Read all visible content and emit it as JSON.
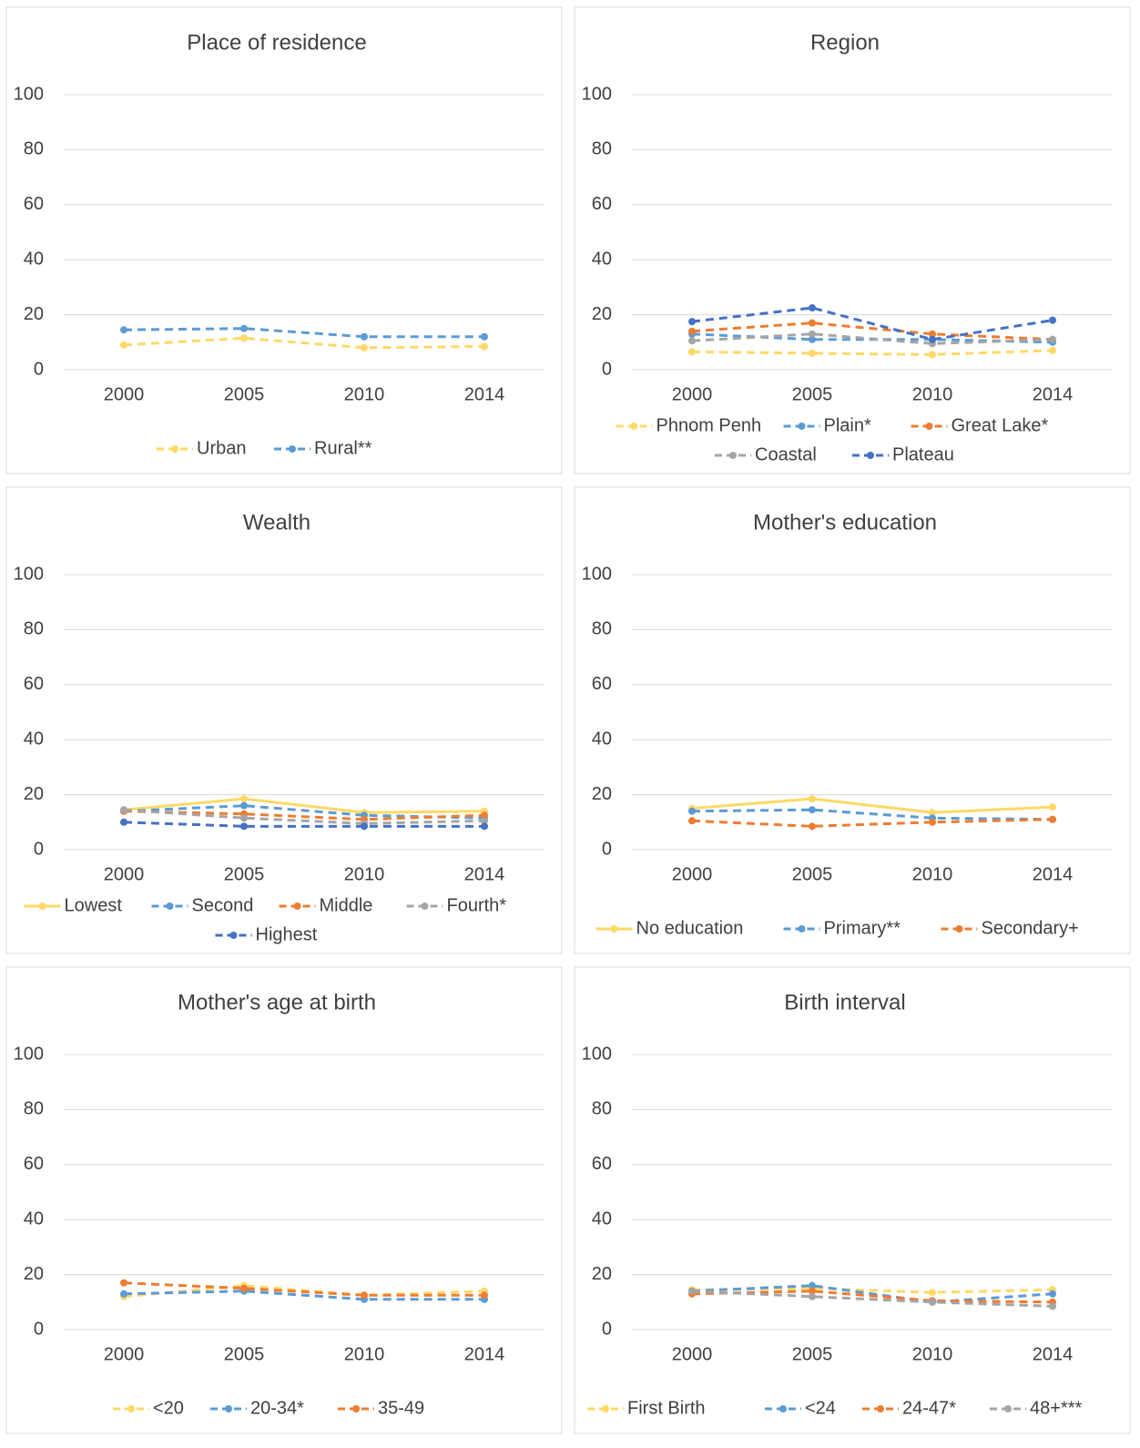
{
  "chart_data": [
    {
      "type": "line",
      "title": "Place of residence",
      "categories": [
        "2000",
        "2005",
        "2010",
        "2014"
      ],
      "ylim": [
        0,
        100
      ],
      "yticks": [
        0,
        20,
        40,
        60,
        80,
        100
      ],
      "grid": true,
      "series": [
        {
          "name": "Urban",
          "color": "#FFD966",
          "dashed": true,
          "values": [
            9,
            11.5,
            8,
            8.5
          ]
        },
        {
          "name": "Rural**",
          "color": "#5B9BD5",
          "dashed": true,
          "values": [
            14.5,
            15,
            12,
            12
          ]
        }
      ]
    },
    {
      "type": "line",
      "title": "Region",
      "categories": [
        "2000",
        "2005",
        "2010",
        "2014"
      ],
      "ylim": [
        0,
        100
      ],
      "yticks": [
        0,
        20,
        40,
        60,
        80,
        100
      ],
      "grid": true,
      "series": [
        {
          "name": "Phnom Penh",
          "color": "#FFD966",
          "dashed": true,
          "values": [
            6.5,
            6,
            5.5,
            7
          ]
        },
        {
          "name": "Plain*",
          "color": "#5B9BD5",
          "dashed": true,
          "values": [
            13,
            11,
            11,
            10
          ]
        },
        {
          "name": "Great Lake*",
          "color": "#ED7D31",
          "dashed": true,
          "values": [
            14,
            17,
            13,
            11
          ]
        },
        {
          "name": "Coastal",
          "color": "#A5A5A5",
          "dashed": true,
          "values": [
            10.5,
            13,
            9.5,
            11
          ]
        },
        {
          "name": "Plateau",
          "color": "#4472C4",
          "dashed": true,
          "values": [
            17.5,
            22.5,
            11,
            18
          ]
        }
      ]
    },
    {
      "type": "line",
      "title": "Wealth",
      "categories": [
        "2000",
        "2005",
        "2010",
        "2014"
      ],
      "ylim": [
        0,
        100
      ],
      "yticks": [
        0,
        20,
        40,
        60,
        80,
        100
      ],
      "grid": true,
      "series": [
        {
          "name": "Lowest",
          "color": "#FFD966",
          "dashed": false,
          "values": [
            14.5,
            18.5,
            13.5,
            14
          ]
        },
        {
          "name": "Second",
          "color": "#5B9BD5",
          "dashed": true,
          "values": [
            14,
            16,
            12.5,
            11.5
          ]
        },
        {
          "name": "Middle",
          "color": "#ED7D31",
          "dashed": true,
          "values": [
            14,
            13,
            11,
            12.5
          ]
        },
        {
          "name": "Fourth*",
          "color": "#A5A5A5",
          "dashed": true,
          "values": [
            14.5,
            11.5,
            9.5,
            10.5
          ]
        },
        {
          "name": "Highest",
          "color": "#4472C4",
          "dashed": true,
          "values": [
            10,
            8.5,
            8.5,
            8.5
          ]
        }
      ]
    },
    {
      "type": "line",
      "title": "Mother's education",
      "categories": [
        "2000",
        "2005",
        "2010",
        "2014"
      ],
      "ylim": [
        0,
        100
      ],
      "yticks": [
        0,
        20,
        40,
        60,
        80,
        100
      ],
      "grid": true,
      "series": [
        {
          "name": "No education",
          "color": "#FFD966",
          "dashed": false,
          "values": [
            15,
            18.5,
            13.5,
            15.5
          ]
        },
        {
          "name": "Primary**",
          "color": "#5B9BD5",
          "dashed": true,
          "values": [
            14,
            14.5,
            11.5,
            11
          ]
        },
        {
          "name": "Secondary+",
          "color": "#ED7D31",
          "dashed": true,
          "values": [
            10.5,
            8.5,
            10,
            11
          ]
        }
      ]
    },
    {
      "type": "line",
      "title": "Mother's age at birth",
      "categories": [
        "2000",
        "2005",
        "2010",
        "2014"
      ],
      "ylim": [
        0,
        100
      ],
      "yticks": [
        0,
        20,
        40,
        60,
        80,
        100
      ],
      "grid": true,
      "series": [
        {
          "name": "<20",
          "color": "#FFD966",
          "dashed": true,
          "values": [
            12,
            16,
            12.5,
            14
          ]
        },
        {
          "name": "20-34*",
          "color": "#5B9BD5",
          "dashed": true,
          "values": [
            13,
            14,
            11,
            11
          ]
        },
        {
          "name": "35-49",
          "color": "#ED7D31",
          "dashed": true,
          "values": [
            17,
            15,
            12.5,
            12.5
          ]
        }
      ]
    },
    {
      "type": "line",
      "title": "Birth interval",
      "categories": [
        "2000",
        "2005",
        "2010",
        "2014"
      ],
      "ylim": [
        0,
        100
      ],
      "yticks": [
        0,
        20,
        40,
        60,
        80,
        100
      ],
      "grid": true,
      "series": [
        {
          "name": "First Birth",
          "color": "#FFD966",
          "dashed": true,
          "values": [
            14.5,
            15,
            13.5,
            14.5
          ]
        },
        {
          "name": "<24",
          "color": "#5B9BD5",
          "dashed": true,
          "values": [
            14,
            16,
            10,
            13
          ]
        },
        {
          "name": "24-47*",
          "color": "#ED7D31",
          "dashed": true,
          "values": [
            13,
            14,
            10.5,
            10
          ]
        },
        {
          "name": "48+***",
          "color": "#A5A5A5",
          "dashed": true,
          "values": [
            14,
            12,
            10,
            8.5
          ]
        }
      ]
    }
  ]
}
